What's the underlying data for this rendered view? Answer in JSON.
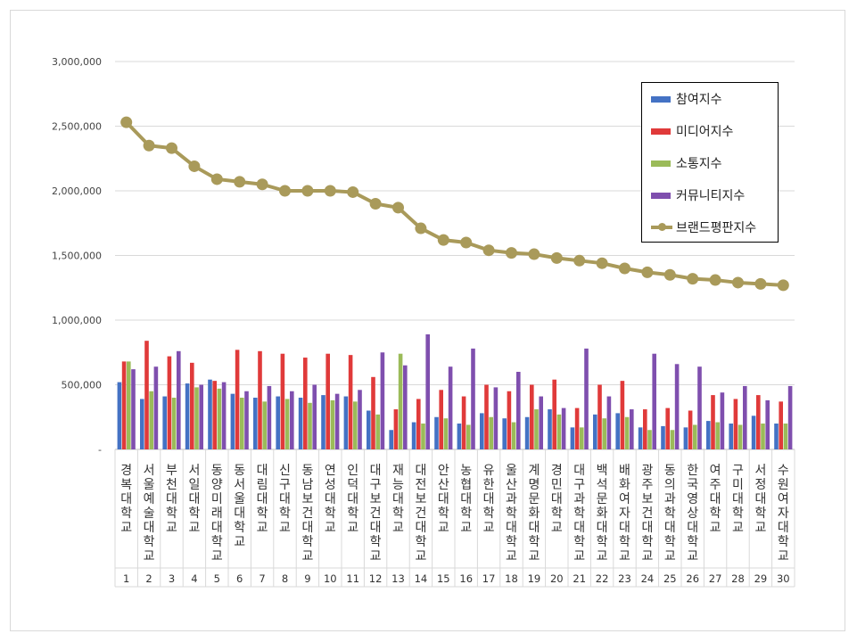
{
  "chart_data": {
    "type": "bar",
    "y_ticks": [
      {
        "value": 0,
        "label": "-"
      },
      {
        "value": 500000,
        "label": "500,000"
      },
      {
        "value": 1000000,
        "label": "1,000,000"
      },
      {
        "value": 1500000,
        "label": "1,500,000"
      },
      {
        "value": 2000000,
        "label": "2,000,000"
      },
      {
        "value": 2500000,
        "label": "2,500,000"
      },
      {
        "value": 3000000,
        "label": "3,000,000"
      }
    ],
    "ylim": [
      0,
      3000000
    ],
    "grid": true,
    "legend_position": "top-right",
    "categories": [
      {
        "name": "경복대학교",
        "rank": "1"
      },
      {
        "name": "서울예술대학교",
        "rank": "2"
      },
      {
        "name": "부천대학교",
        "rank": "3"
      },
      {
        "name": "서일대학교",
        "rank": "4"
      },
      {
        "name": "동양미래대학교",
        "rank": "5"
      },
      {
        "name": "동서울대학교",
        "rank": "6"
      },
      {
        "name": "대림대학교",
        "rank": "7"
      },
      {
        "name": "신구대학교",
        "rank": "8"
      },
      {
        "name": "동남보건대학교",
        "rank": "9"
      },
      {
        "name": "연성대학교",
        "rank": "10"
      },
      {
        "name": "인덕대학교",
        "rank": "11"
      },
      {
        "name": "대구보건대학교",
        "rank": "12"
      },
      {
        "name": "재능대학교",
        "rank": "13"
      },
      {
        "name": "대전보건대학교",
        "rank": "14"
      },
      {
        "name": "안산대학교",
        "rank": "15"
      },
      {
        "name": "농협대학교",
        "rank": "16"
      },
      {
        "name": "유한대학교",
        "rank": "17"
      },
      {
        "name": "울산과학대학교",
        "rank": "18"
      },
      {
        "name": "계명문화대학교",
        "rank": "19"
      },
      {
        "name": "경민대학교",
        "rank": "20"
      },
      {
        "name": "대구과학대학교",
        "rank": "21"
      },
      {
        "name": "백석문화대학교",
        "rank": "22"
      },
      {
        "name": "배화여자대학교",
        "rank": "23"
      },
      {
        "name": "광주보건대학교",
        "rank": "24"
      },
      {
        "name": "동의과학대학교",
        "rank": "25"
      },
      {
        "name": "한국영상대학교",
        "rank": "26"
      },
      {
        "name": "여주대학교",
        "rank": "27"
      },
      {
        "name": "구미대학교",
        "rank": "28"
      },
      {
        "name": "서정대학교",
        "rank": "29"
      },
      {
        "name": "수원여자대학교",
        "rank": "30"
      }
    ],
    "series": [
      {
        "name": "참여지수",
        "kind": "bar",
        "color": "#4472c4",
        "values": [
          520000,
          390000,
          410000,
          510000,
          540000,
          430000,
          400000,
          410000,
          400000,
          420000,
          410000,
          300000,
          150000,
          210000,
          250000,
          200000,
          280000,
          240000,
          250000,
          310000,
          170000,
          270000,
          280000,
          170000,
          180000,
          170000,
          220000,
          200000,
          260000,
          200000
        ]
      },
      {
        "name": "미디어지수",
        "kind": "bar",
        "color": "#e03a3a",
        "values": [
          680000,
          840000,
          720000,
          670000,
          530000,
          770000,
          760000,
          740000,
          710000,
          740000,
          730000,
          560000,
          310000,
          390000,
          460000,
          410000,
          500000,
          450000,
          500000,
          540000,
          320000,
          500000,
          530000,
          310000,
          320000,
          300000,
          420000,
          390000,
          420000,
          370000
        ]
      },
      {
        "name": "소통지수",
        "kind": "bar",
        "color": "#9bbb59",
        "values": [
          680000,
          450000,
          400000,
          480000,
          470000,
          400000,
          370000,
          390000,
          360000,
          380000,
          370000,
          270000,
          740000,
          200000,
          240000,
          190000,
          250000,
          210000,
          310000,
          270000,
          170000,
          240000,
          250000,
          150000,
          150000,
          190000,
          210000,
          190000,
          200000,
          200000
        ]
      },
      {
        "name": "커뮤니티지수",
        "kind": "bar",
        "color": "#7f4fae",
        "values": [
          620000,
          640000,
          760000,
          500000,
          520000,
          450000,
          490000,
          450000,
          500000,
          430000,
          460000,
          750000,
          650000,
          890000,
          640000,
          780000,
          480000,
          600000,
          410000,
          320000,
          780000,
          410000,
          310000,
          740000,
          660000,
          640000,
          440000,
          490000,
          380000,
          490000
        ]
      },
      {
        "name": "브랜드평판지수",
        "kind": "line",
        "color": "#a99a5a",
        "values": [
          2530000,
          2350000,
          2330000,
          2190000,
          2090000,
          2070000,
          2050000,
          2000000,
          2000000,
          2000000,
          1990000,
          1900000,
          1870000,
          1710000,
          1620000,
          1600000,
          1540000,
          1520000,
          1510000,
          1480000,
          1460000,
          1440000,
          1400000,
          1370000,
          1350000,
          1320000,
          1310000,
          1290000,
          1280000,
          1270000
        ]
      }
    ]
  }
}
